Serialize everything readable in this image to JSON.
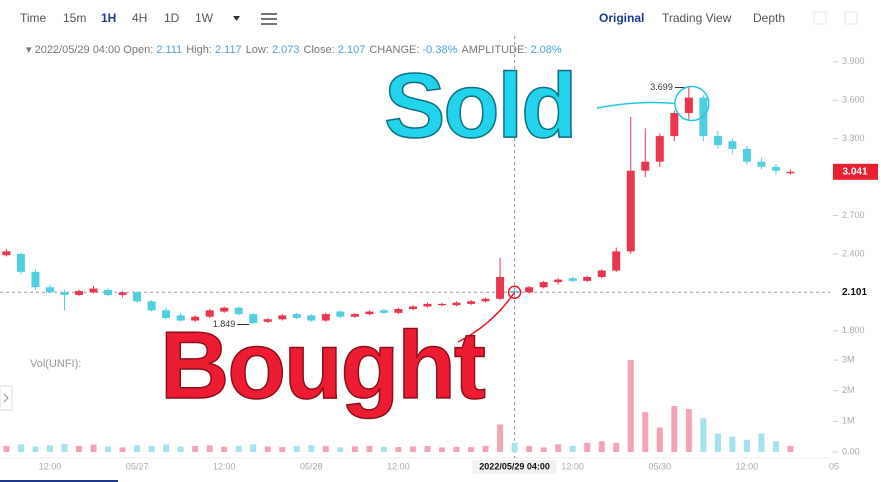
{
  "toolbar": {
    "intervals": [
      "Time",
      "15m",
      "1H",
      "4H",
      "1D",
      "1W"
    ],
    "active_interval": "1H",
    "views": [
      "Original",
      "Trading View",
      "Depth"
    ],
    "active_view": "Original"
  },
  "info_bar": {
    "labels": [
      "Open:",
      "High:",
      "Low:",
      "Close:"
    ],
    "change_label": "CHANGE:",
    "change": "-0.38%",
    "amplitude_label": "AMPLITUDE:",
    "amplitude": "2.08%"
  },
  "annotations": {
    "sold": "Sold",
    "bought": "Bought"
  },
  "chart_data": [
    {
      "type": "candlestick",
      "categories": [
        null,
        null,
        null,
        "12:00",
        null,
        null,
        null,
        null,
        null,
        "05/27",
        null,
        null,
        null,
        null,
        null,
        "12:00",
        null,
        null,
        null,
        null,
        null,
        "05/28",
        null,
        null,
        null,
        null,
        null,
        "12:00",
        null,
        null,
        null,
        null,
        null,
        null,
        null,
        "2022/05/29 04:00",
        null,
        null,
        null,
        "12:00",
        null,
        null,
        null,
        null,
        null,
        "05/30",
        null,
        null,
        null,
        null,
        null,
        "12:00",
        null,
        null,
        null,
        null,
        null,
        "05"
      ],
      "open": [
        2.39,
        2.4,
        2.26,
        2.14,
        2.1,
        2.08,
        2.1,
        2.12,
        2.08,
        2.1,
        2.03,
        1.96,
        1.92,
        1.88,
        1.91,
        1.95,
        1.98,
        1.93,
        1.87,
        1.89,
        1.93,
        1.92,
        1.88,
        1.95,
        1.91,
        1.93,
        1.96,
        1.94,
        1.97,
        1.99,
        2.0,
        2.0,
        2.01,
        2.03,
        2.05,
        2.111,
        2.1,
        2.14,
        2.18,
        2.21,
        2.19,
        2.22,
        2.27,
        2.42,
        3.05,
        3.12,
        3.32,
        3.5,
        3.62,
        3.32,
        3.28,
        3.22,
        3.12,
        3.08,
        3.03,
        null,
        null,
        null
      ],
      "high": [
        2.44,
        2.41,
        2.28,
        2.16,
        2.12,
        2.12,
        2.15,
        2.13,
        2.11,
        2.11,
        2.04,
        1.98,
        1.94,
        1.92,
        1.97,
        1.99,
        1.99,
        1.94,
        1.9,
        1.93,
        1.94,
        1.93,
        1.94,
        1.96,
        1.94,
        1.96,
        1.97,
        1.98,
        2.0,
        2.02,
        2.02,
        2.03,
        2.04,
        2.06,
        2.37,
        2.117,
        2.15,
        2.19,
        2.21,
        2.22,
        2.23,
        2.28,
        2.45,
        3.47,
        3.38,
        3.34,
        3.52,
        3.699,
        3.64,
        3.36,
        3.3,
        3.24,
        3.15,
        3.1,
        3.06,
        null,
        null,
        null
      ],
      "low": [
        2.38,
        2.24,
        2.12,
        2.09,
        1.96,
        2.07,
        2.09,
        2.07,
        2.06,
        2.02,
        1.95,
        1.89,
        1.87,
        1.87,
        1.9,
        1.94,
        1.92,
        1.849,
        1.86,
        1.88,
        1.89,
        1.87,
        1.87,
        1.9,
        1.9,
        1.92,
        1.93,
        1.93,
        1.96,
        1.98,
        1.99,
        1.99,
        2.0,
        2.02,
        2.04,
        2.073,
        2.09,
        2.13,
        2.16,
        2.18,
        2.18,
        2.21,
        2.26,
        2.4,
        3.0,
        3.08,
        3.28,
        3.45,
        3.28,
        3.22,
        3.18,
        3.1,
        3.06,
        3.02,
        3.02,
        null,
        null,
        null
      ],
      "close": [
        2.42,
        2.26,
        2.14,
        2.1,
        2.08,
        2.11,
        2.13,
        2.08,
        2.1,
        2.03,
        1.96,
        1.9,
        1.88,
        1.91,
        1.96,
        1.98,
        1.93,
        1.86,
        1.89,
        1.92,
        1.9,
        1.88,
        1.93,
        1.91,
        1.93,
        1.95,
        1.94,
        1.97,
        1.99,
        2.01,
        2.01,
        2.02,
        2.03,
        2.05,
        2.22,
        2.107,
        2.14,
        2.18,
        2.2,
        2.19,
        2.22,
        2.27,
        2.42,
        3.05,
        3.12,
        3.32,
        3.5,
        3.62,
        3.32,
        3.25,
        3.22,
        3.12,
        3.08,
        3.05,
        3.041,
        null,
        null,
        null
      ],
      "colors": {
        "up": "#e8364f",
        "down": "#4fcfe0",
        "last_price": "#e8202f"
      },
      "ylim": [
        1.65,
        4.07
      ],
      "yticks": [
        {
          "value": 3.9,
          "label": "3.900"
        },
        {
          "value": 3.6,
          "label": "3.600"
        },
        {
          "value": 3.3,
          "label": "3.300"
        },
        {
          "value": 2.7,
          "label": "2.700"
        },
        {
          "value": 2.4,
          "label": "2.400"
        },
        {
          "value": 1.8,
          "label": "1.800"
        }
      ],
      "crosshair": {
        "category": "2022/05/29 04:00",
        "price": 2.101
      }
    },
    {
      "type": "bar",
      "title": "Vol(UNFI):",
      "values": [
        200000,
        250000,
        180000,
        220000,
        260000,
        200000,
        240000,
        180000,
        150000,
        220000,
        200000,
        250000,
        180000,
        200000,
        220000,
        170000,
        200000,
        250000,
        180000,
        160000,
        200000,
        220000,
        190000,
        150000,
        180000,
        200000,
        170000,
        160000,
        180000,
        200000,
        150000,
        170000,
        160000,
        200000,
        900000,
        300000,
        200000,
        150000,
        250000,
        200000,
        300000,
        350000,
        300000,
        3000000,
        1300000,
        800000,
        1500000,
        1400000,
        1100000,
        600000,
        500000,
        400000,
        600000,
        350000,
        200000,
        null,
        null,
        null
      ],
      "colors": {
        "up": "#f2a3b4",
        "down": "#a4e3ee"
      },
      "ylim": [
        0,
        3100000
      ],
      "yticks": [
        {
          "value": 3000000,
          "label": "3M"
        },
        {
          "value": 2000000,
          "label": "2M"
        },
        {
          "value": 1000000,
          "label": "1M"
        },
        {
          "value": 0,
          "label": "0.00"
        }
      ]
    }
  ]
}
